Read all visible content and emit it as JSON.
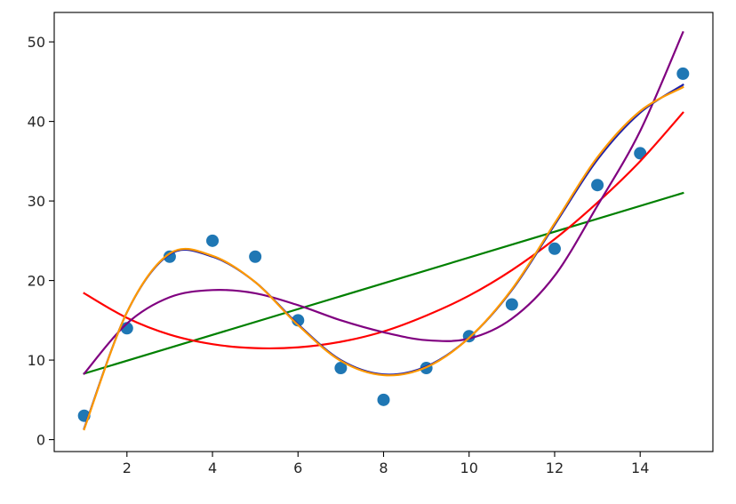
{
  "chart_data": {
    "type": "scatter",
    "title": "",
    "xlabel": "",
    "ylabel": "",
    "xlim": [
      0.3,
      15.7
    ],
    "ylim": [
      -1.5,
      53.7
    ],
    "grid": false,
    "xticks": [
      2,
      4,
      6,
      8,
      10,
      12,
      14
    ],
    "yticks": [
      0,
      10,
      20,
      30,
      40,
      50
    ],
    "points": {
      "color": "#1f77b4",
      "x": [
        1,
        2,
        3,
        4,
        5,
        6,
        7,
        8,
        9,
        10,
        11,
        12,
        13,
        14,
        15
      ],
      "y": [
        3,
        14,
        23,
        25,
        23,
        15,
        9,
        5,
        9,
        13,
        17,
        24,
        32,
        36,
        46
      ]
    },
    "fits": [
      {
        "color": "#008000",
        "x": [
          1,
          15
        ],
        "y": [
          8.3,
          31.0
        ]
      },
      {
        "color": "#ff0000",
        "x": [
          1,
          2,
          3,
          4,
          5,
          6,
          7,
          8,
          9,
          10,
          11,
          12,
          13,
          14,
          15
        ],
        "y": [
          18.4,
          15.3,
          13.2,
          12.0,
          11.5,
          11.6,
          12.3,
          13.6,
          15.6,
          18.1,
          21.3,
          25.2,
          29.8,
          35.0,
          41.1
        ]
      },
      {
        "color": "#800080",
        "x": [
          1,
          2,
          3,
          4,
          5,
          6,
          7,
          8,
          9,
          10,
          11,
          12,
          13,
          14,
          15
        ],
        "y": [
          8.3,
          14.6,
          17.9,
          18.8,
          18.4,
          16.9,
          15.0,
          13.5,
          12.5,
          12.7,
          15.2,
          20.6,
          29.4,
          38.8,
          51.2
        ]
      },
      {
        "color": "#1f1fa8",
        "x": [
          1,
          2,
          3,
          4,
          5,
          6,
          7,
          8,
          9,
          10,
          11,
          12,
          13,
          14,
          15
        ],
        "y": [
          1.4,
          16.0,
          23.3,
          23.0,
          19.8,
          14.5,
          10.0,
          8.2,
          9.2,
          12.8,
          18.8,
          27.0,
          35.2,
          41.1,
          44.6
        ]
      },
      {
        "color": "#ff9900",
        "x": [
          1,
          2,
          3,
          4,
          5,
          6,
          7,
          8,
          9,
          10,
          11,
          12,
          13,
          14,
          15
        ],
        "y": [
          1.3,
          16.0,
          23.4,
          23.1,
          19.8,
          14.4,
          9.9,
          8.1,
          9.1,
          12.8,
          18.9,
          27.2,
          35.5,
          41.3,
          44.3
        ]
      }
    ]
  }
}
